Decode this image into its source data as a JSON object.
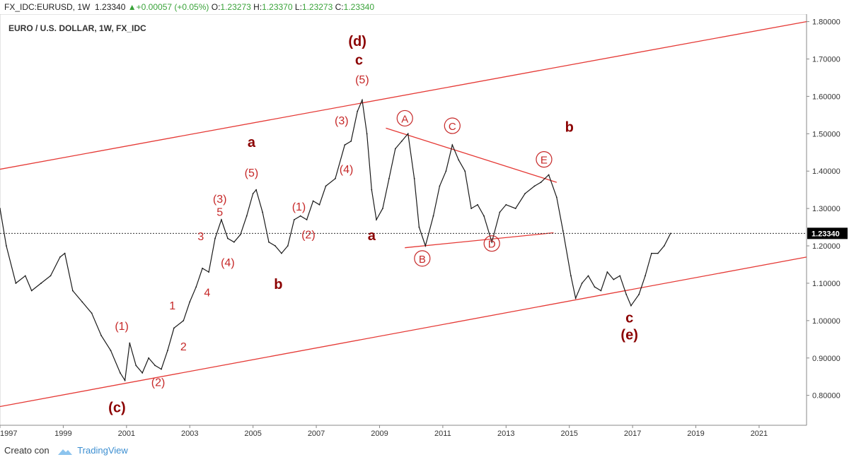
{
  "header": {
    "symbol": "FX_IDC:EURUSD, 1W",
    "price": "1.23340",
    "arrow": "▲",
    "change": "+0.00057 (+0.05%)",
    "o_label": "O:",
    "o_value": "1.23273",
    "h_label": "H:",
    "h_value": "1.23370",
    "l_label": "L:",
    "l_value": "1.23273",
    "c_label": "C:",
    "c_value": "1.23340"
  },
  "footer": {
    "created_with": "Creato con",
    "brand": "TradingView"
  },
  "chart_data": {
    "type": "line",
    "title": "EURO / U.S. DOLLAR, 1W, FX_IDC",
    "xlim": [
      1997.0,
      2022.5
    ],
    "ylim": [
      0.72,
      1.82
    ],
    "x_ticks": [
      "1997",
      "1999",
      "2001",
      "2003",
      "2005",
      "2007",
      "2009",
      "2011",
      "2013",
      "2015",
      "2017",
      "2019",
      "2021"
    ],
    "y_ticks": [
      "0.80000",
      "0.90000",
      "1.00000",
      "1.10000",
      "1.20000",
      "1.30000",
      "1.40000",
      "1.50000",
      "1.60000",
      "1.70000",
      "1.80000"
    ],
    "last_price": "1.23340",
    "colors": {
      "line": "#1a1a1a",
      "annotation": "#c62828",
      "annotation_bold": "#8b0000",
      "axis_text": "#333333",
      "price_tag_bg": "#000000"
    },
    "series": [
      {
        "x": [
          1997.0,
          1997.2,
          1997.5,
          1997.8,
          1998.0,
          1998.3,
          1998.6,
          1998.9,
          1999.05,
          1999.3,
          1999.6,
          1999.9,
          2000.2,
          2000.5,
          2000.8,
          2000.95,
          2001.1,
          2001.3,
          2001.5,
          2001.7,
          2001.9,
          2002.1,
          2002.3,
          2002.5,
          2002.8,
          2003.0,
          2003.2,
          2003.4,
          2003.6,
          2003.8,
          2004.0,
          2004.2,
          2004.4,
          2004.6,
          2004.8,
          2005.0,
          2005.1,
          2005.3,
          2005.5,
          2005.7,
          2005.9,
          2006.1,
          2006.3,
          2006.5,
          2006.7,
          2006.9,
          2007.1,
          2007.3,
          2007.6,
          2007.9,
          2008.1,
          2008.3,
          2008.45,
          2008.6,
          2008.75,
          2008.9,
          2009.1,
          2009.3,
          2009.5,
          2009.7,
          2009.9,
          2010.1,
          2010.25,
          2010.45,
          2010.7,
          2010.9,
          2011.1,
          2011.3,
          2011.5,
          2011.7,
          2011.9,
          2012.1,
          2012.3,
          2012.55,
          2012.8,
          2013.0,
          2013.3,
          2013.6,
          2013.9,
          2014.1,
          2014.35,
          2014.6,
          2014.8,
          2015.05,
          2015.2,
          2015.4,
          2015.6,
          2015.8,
          2016.0,
          2016.2,
          2016.4,
          2016.6,
          2016.8,
          2016.95,
          2017.2,
          2017.4,
          2017.6,
          2017.8,
          2018.0,
          2018.2
        ],
        "y": [
          1.3,
          1.2,
          1.1,
          1.12,
          1.08,
          1.1,
          1.12,
          1.17,
          1.18,
          1.08,
          1.05,
          1.02,
          0.96,
          0.92,
          0.86,
          0.84,
          0.94,
          0.88,
          0.86,
          0.9,
          0.88,
          0.87,
          0.92,
          0.98,
          1.0,
          1.05,
          1.09,
          1.14,
          1.13,
          1.22,
          1.27,
          1.22,
          1.21,
          1.23,
          1.28,
          1.34,
          1.35,
          1.29,
          1.21,
          1.2,
          1.18,
          1.2,
          1.27,
          1.28,
          1.27,
          1.32,
          1.31,
          1.36,
          1.38,
          1.47,
          1.48,
          1.56,
          1.59,
          1.5,
          1.35,
          1.27,
          1.3,
          1.38,
          1.46,
          1.48,
          1.5,
          1.38,
          1.25,
          1.2,
          1.28,
          1.36,
          1.4,
          1.47,
          1.43,
          1.4,
          1.3,
          1.31,
          1.28,
          1.21,
          1.29,
          1.31,
          1.3,
          1.34,
          1.36,
          1.37,
          1.39,
          1.33,
          1.24,
          1.12,
          1.06,
          1.1,
          1.12,
          1.09,
          1.08,
          1.13,
          1.11,
          1.12,
          1.07,
          1.04,
          1.07,
          1.12,
          1.18,
          1.18,
          1.2,
          1.2334
        ]
      }
    ],
    "annotations": [
      {
        "text": "(d)",
        "x": 2008.3,
        "y": 1.735,
        "style": "bold"
      },
      {
        "text": "c",
        "x": 2008.35,
        "y": 1.685,
        "style": "bold"
      },
      {
        "text": "(5)",
        "x": 2008.45,
        "y": 1.635,
        "style": "normal"
      },
      {
        "text": "(3)",
        "x": 2007.8,
        "y": 1.525,
        "style": "normal"
      },
      {
        "text": "(4)",
        "x": 2007.95,
        "y": 1.395,
        "style": "normal"
      },
      {
        "text": "a",
        "x": 2004.95,
        "y": 1.465,
        "style": "bold"
      },
      {
        "text": "(5)",
        "x": 2004.95,
        "y": 1.385,
        "style": "normal"
      },
      {
        "text": "(3)",
        "x": 2003.95,
        "y": 1.315,
        "style": "normal"
      },
      {
        "text": "5",
        "x": 2003.95,
        "y": 1.28,
        "style": "normal"
      },
      {
        "text": "3",
        "x": 2003.35,
        "y": 1.215,
        "style": "normal"
      },
      {
        "text": "(4)",
        "x": 2004.2,
        "y": 1.145,
        "style": "normal"
      },
      {
        "text": "4",
        "x": 2003.55,
        "y": 1.065,
        "style": "normal"
      },
      {
        "text": "1",
        "x": 2002.45,
        "y": 1.03,
        "style": "normal"
      },
      {
        "text": "2",
        "x": 2002.8,
        "y": 0.92,
        "style": "normal"
      },
      {
        "text": "(1)",
        "x": 2000.85,
        "y": 0.975,
        "style": "normal"
      },
      {
        "text": "(2)",
        "x": 2002.0,
        "y": 0.825,
        "style": "normal"
      },
      {
        "text": "(c)",
        "x": 2000.7,
        "y": 0.755,
        "style": "bold"
      },
      {
        "text": "(1)",
        "x": 2006.45,
        "y": 1.295,
        "style": "normal"
      },
      {
        "text": "(2)",
        "x": 2006.75,
        "y": 1.22,
        "style": "normal"
      },
      {
        "text": "b",
        "x": 2005.8,
        "y": 1.085,
        "style": "bold"
      },
      {
        "text": "a",
        "x": 2008.75,
        "y": 1.215,
        "style": "bold"
      },
      {
        "text": "A",
        "x": 2009.8,
        "y": 1.53,
        "style": "circle"
      },
      {
        "text": "C",
        "x": 2011.3,
        "y": 1.51,
        "style": "circle"
      },
      {
        "text": "E",
        "x": 2014.2,
        "y": 1.42,
        "style": "circle"
      },
      {
        "text": "B",
        "x": 2010.35,
        "y": 1.155,
        "style": "circle"
      },
      {
        "text": "D",
        "x": 2012.55,
        "y": 1.195,
        "style": "circle"
      },
      {
        "text": "b",
        "x": 2015.0,
        "y": 1.505,
        "style": "bold"
      },
      {
        "text": "c",
        "x": 2016.9,
        "y": 0.995,
        "style": "bold"
      },
      {
        "text": "(e)",
        "x": 2016.9,
        "y": 0.95,
        "style": "bold"
      }
    ],
    "trendlines": [
      {
        "x1": 1997.0,
        "y1": 1.405,
        "x2": 2022.5,
        "y2": 1.8
      },
      {
        "x1": 1997.0,
        "y1": 0.77,
        "x2": 2022.5,
        "y2": 1.17
      },
      {
        "x1": 2009.2,
        "y1": 1.515,
        "x2": 2014.6,
        "y2": 1.37
      },
      {
        "x1": 2009.8,
        "y1": 1.195,
        "x2": 2014.5,
        "y2": 1.235
      }
    ]
  }
}
